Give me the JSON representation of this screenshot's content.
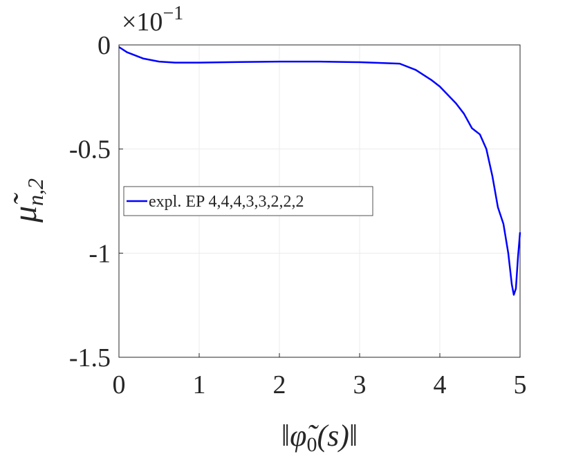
{
  "chart_data": {
    "type": "line",
    "exponent_base": "×10",
    "exponent": "−1",
    "xlabel_parts": [
      "‖φ̃",
      "0",
      "(s)‖"
    ],
    "ylabel_parts": [
      "μ̃",
      "n,2"
    ],
    "x": [
      0,
      0.1,
      0.2,
      0.3,
      0.5,
      0.7,
      1.0,
      1.5,
      2.0,
      2.5,
      3.0,
      3.3,
      3.5,
      3.7,
      3.9,
      4.0,
      4.2,
      4.3,
      4.4,
      4.5,
      4.58,
      4.655,
      4.724,
      4.793,
      4.853,
      4.897,
      4.922,
      4.948,
      4.974,
      5.0
    ],
    "series": [
      {
        "name": "expl. EP 4,4,4,3,3,2,2,2",
        "color": "#0000ff",
        "values": [
          -0.01,
          -0.035,
          -0.05,
          -0.065,
          -0.08,
          -0.085,
          -0.085,
          -0.082,
          -0.08,
          -0.08,
          -0.083,
          -0.087,
          -0.09,
          -0.12,
          -0.17,
          -0.2,
          -0.28,
          -0.33,
          -0.4,
          -0.43,
          -0.5,
          -0.63,
          -0.78,
          -0.86,
          -1.0,
          -1.15,
          -1.2,
          -1.17,
          -1.02,
          -0.9
        ]
      }
    ],
    "xlim": [
      0,
      5
    ],
    "ylim": [
      -1.5,
      0
    ],
    "xticks": [
      0,
      1,
      2,
      3,
      4,
      5
    ],
    "yticks": [
      -1.5,
      -1,
      -0.5,
      0
    ],
    "grid": true,
    "legend": "west"
  }
}
